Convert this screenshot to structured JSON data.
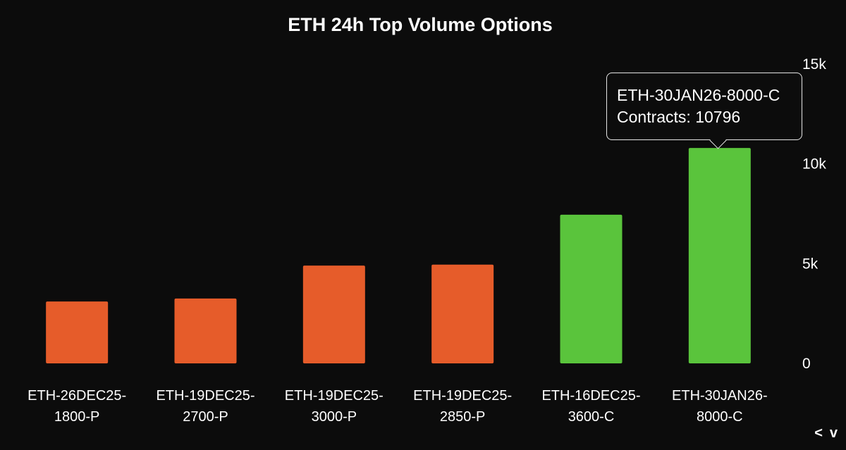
{
  "chart_data": {
    "type": "bar",
    "title": "ETH 24h Top Volume Options",
    "categories": [
      [
        "ETH-26DEC25-",
        "1800-P"
      ],
      [
        "ETH-19DEC25-",
        "2700-P"
      ],
      [
        "ETH-19DEC25-",
        "3000-P"
      ],
      [
        "ETH-19DEC25-",
        "2850-P"
      ],
      [
        "ETH-16DEC25-",
        "3600-C"
      ],
      [
        "ETH-30JAN26-",
        "8000-C"
      ]
    ],
    "values": [
      3100,
      3250,
      4900,
      4950,
      7450,
      10796
    ],
    "colors": [
      "#e65c2a",
      "#e65c2a",
      "#e65c2a",
      "#e65c2a",
      "#5ac43c",
      "#5ac43c"
    ],
    "ylim": [
      0,
      15000
    ],
    "yticks": [
      0,
      5000,
      10000,
      15000
    ],
    "ytick_labels": [
      "0",
      "5k",
      "10k",
      "15k"
    ],
    "yaxis_position": "right",
    "grid": false,
    "xlabel": "",
    "ylabel": "",
    "tooltip": {
      "series_index": 5,
      "line1": "ETH-30JAN26-8000-C",
      "line2": "Contracts: 10796"
    }
  },
  "pager": {
    "prev": "<",
    "next": "v"
  },
  "colors": {
    "background": "#0c0c0c",
    "put": "#e65c2a",
    "call": "#5ac43c",
    "text": "#ffffff"
  }
}
